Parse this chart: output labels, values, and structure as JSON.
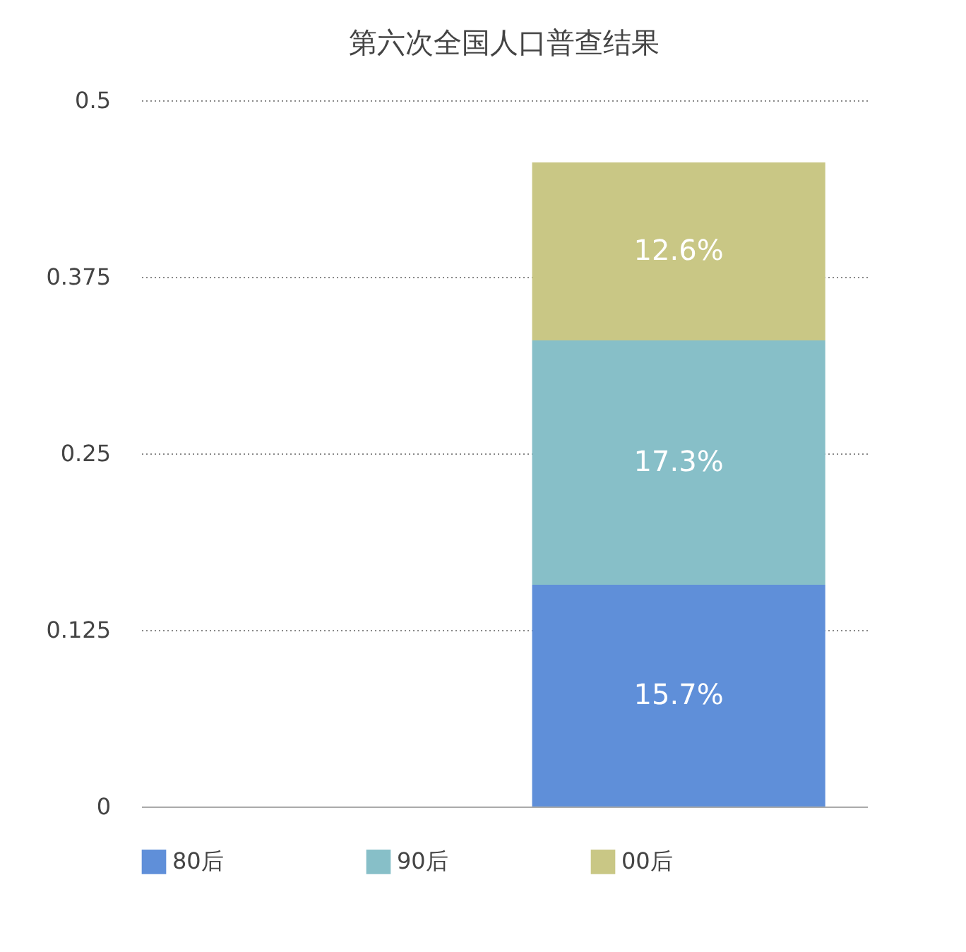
{
  "chart_data": {
    "type": "bar",
    "title": "第六次全国人口普查结果",
    "categories": [
      null,
      null
    ],
    "stacked": true,
    "series": [
      {
        "name": "80后",
        "color": "#5f8fd9",
        "values": [
          null,
          0.157
        ],
        "value_labels": [
          null,
          "15.7%"
        ]
      },
      {
        "name": "90后",
        "color": "#87bfc8",
        "values": [
          null,
          0.173
        ],
        "value_labels": [
          null,
          "17.3%"
        ]
      },
      {
        "name": "00后",
        "color": "#c9c785",
        "values": [
          null,
          0.126
        ],
        "value_labels": [
          null,
          "12.6%"
        ]
      }
    ],
    "ylim": [
      0,
      0.5
    ],
    "yticks": [
      0,
      0.125,
      0.25,
      0.375,
      0.5
    ],
    "grid": "y",
    "legend": "bottom",
    "tick_labels": "y"
  }
}
